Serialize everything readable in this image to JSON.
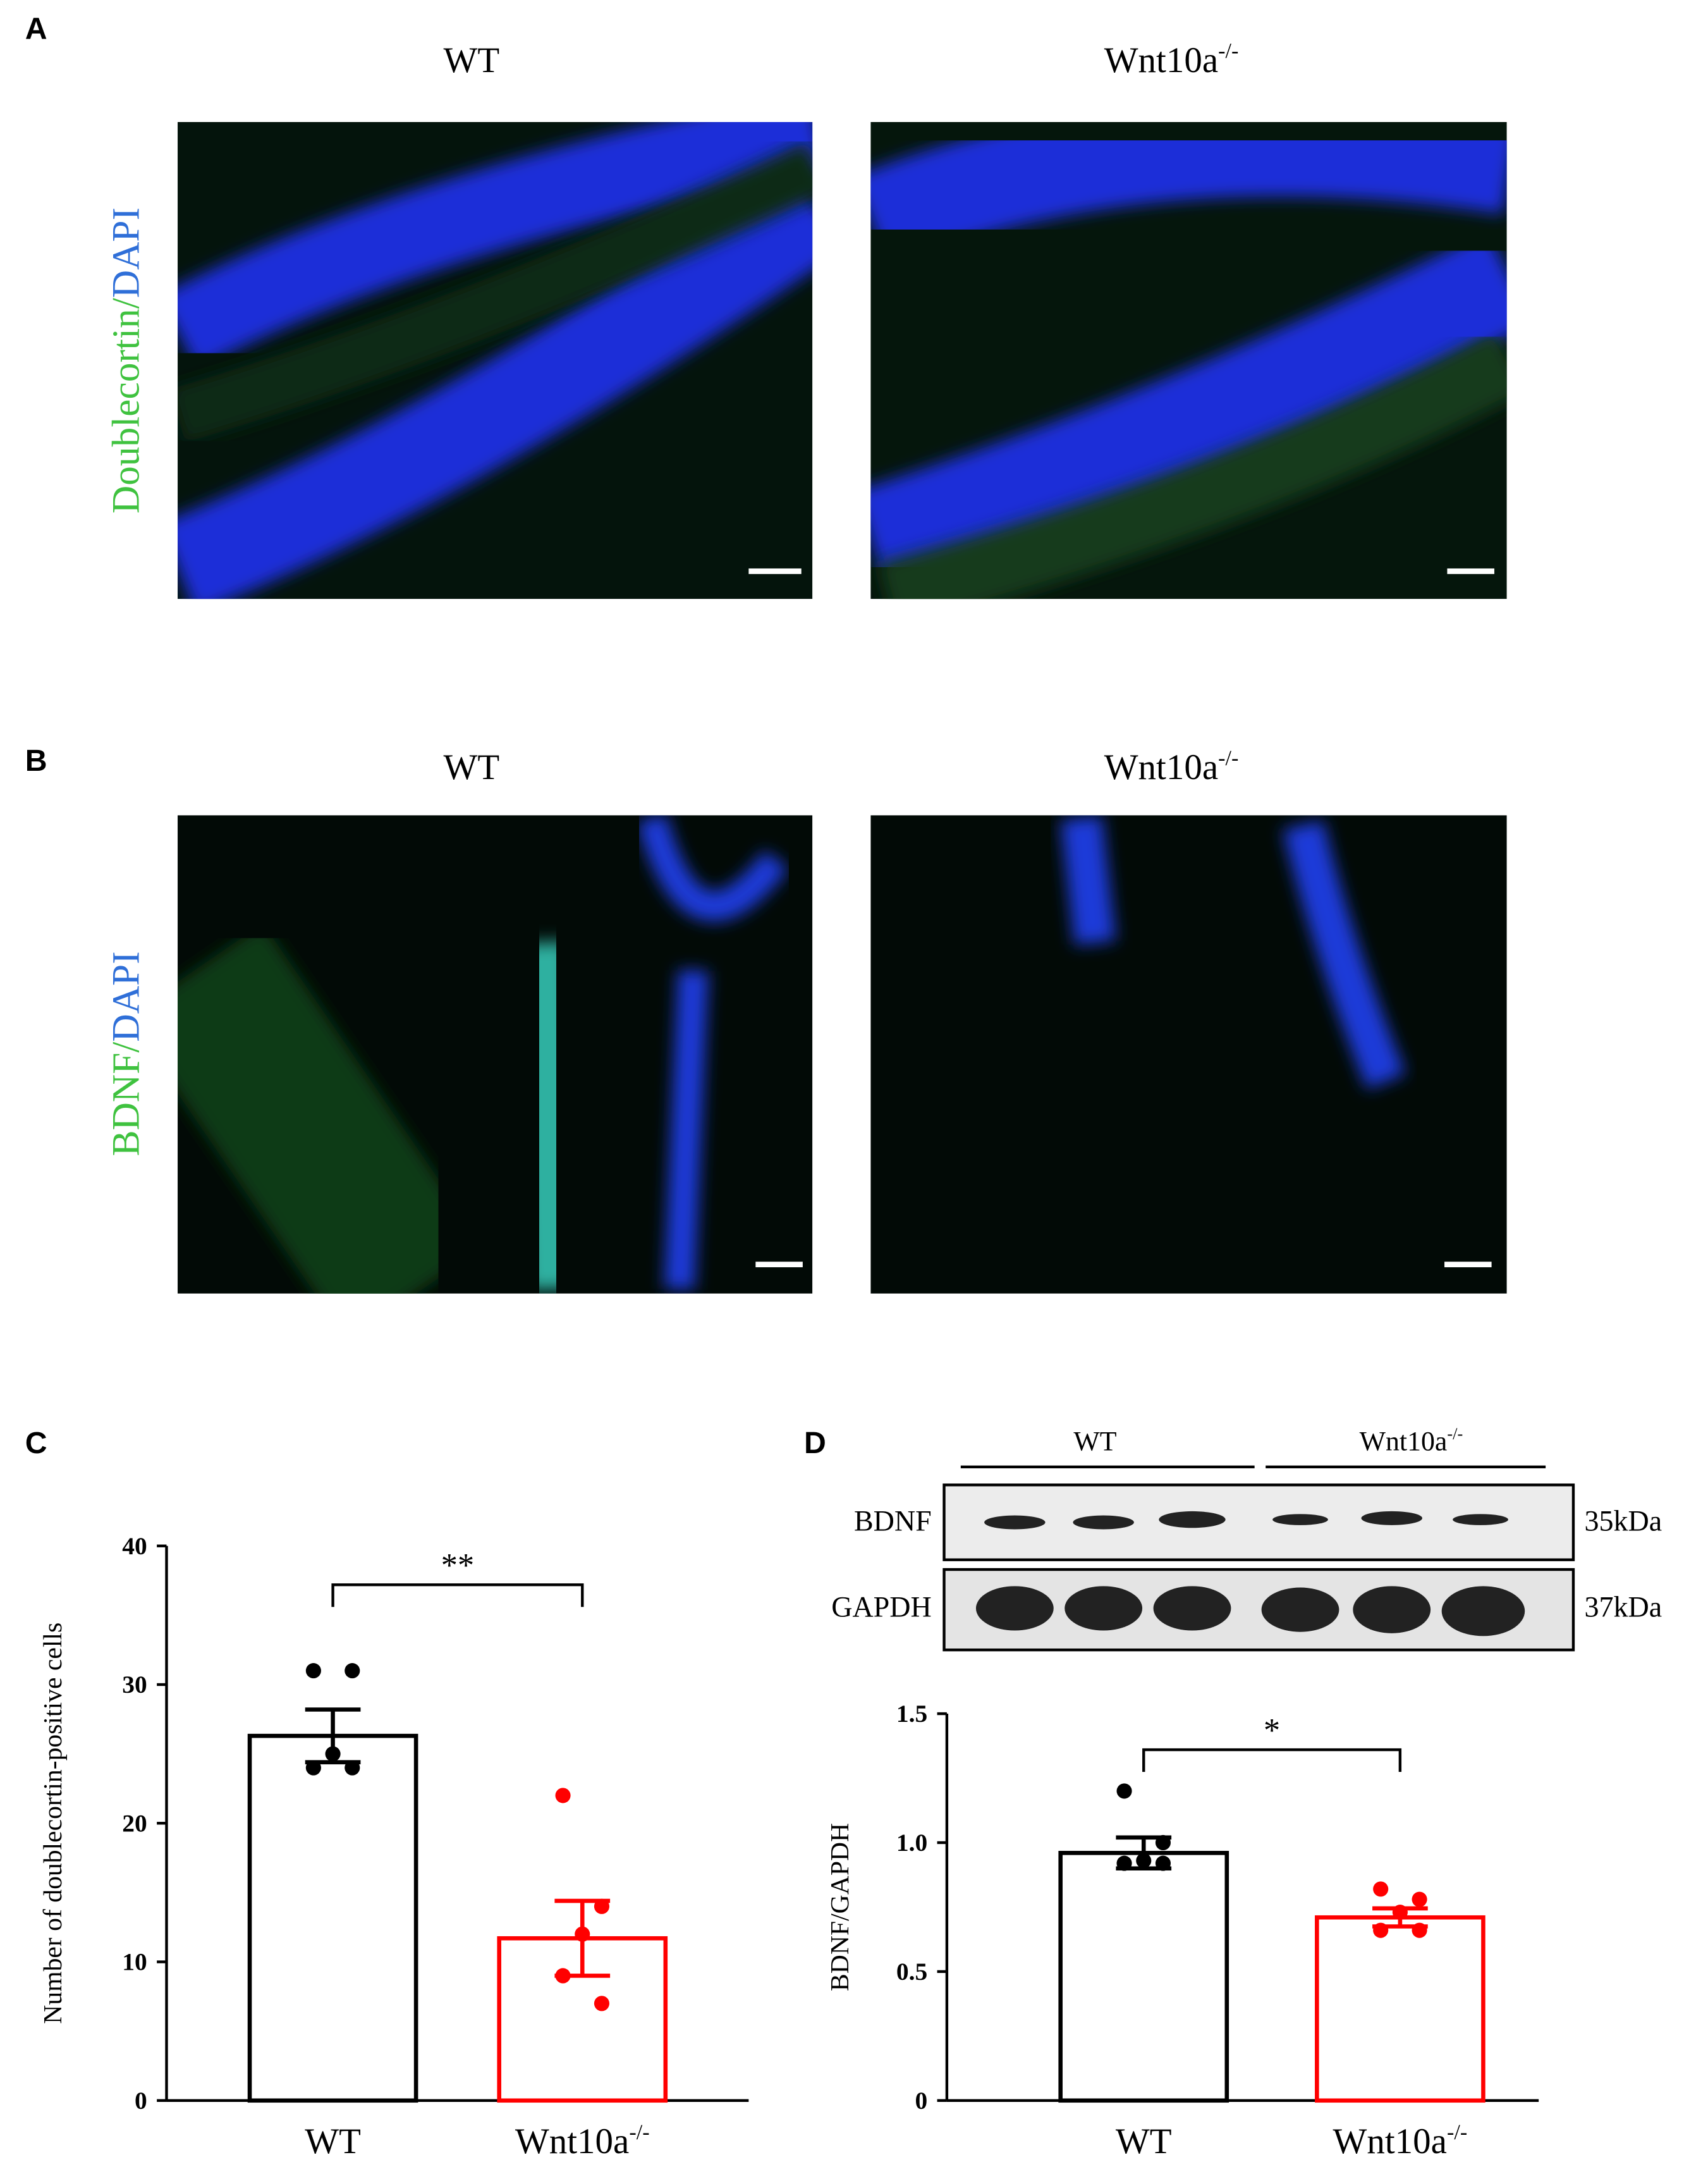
{
  "panel_labels": [
    "A",
    "B",
    "C",
    "D"
  ],
  "panel_a": {
    "columns": [
      {
        "text": "WT"
      },
      {
        "text": "Wnt10a",
        "sup": "-/-"
      }
    ],
    "stain": "Doublecortin",
    "separator": "/",
    "counterstain": "DAPI"
  },
  "panel_b": {
    "columns": [
      {
        "text": "WT"
      },
      {
        "text": "Wnt10a",
        "sup": "-/-"
      }
    ],
    "stain": "BDNF",
    "separator": "/",
    "counterstain": "DAPI"
  },
  "blot": {
    "groups": [
      {
        "text": "WT"
      },
      {
        "text": "Wnt10a",
        "sup": "-/-"
      }
    ],
    "rows": [
      {
        "name": "BDNF",
        "size": "35kDa"
      },
      {
        "name": "GAPDH",
        "size": "37kDa"
      }
    ]
  },
  "chart_data": [
    {
      "type": "bar",
      "ylabel": "Number of doublecortin-positive cells",
      "categories": [
        "WT",
        "Wnt10a"
      ],
      "category_superscripts": [
        null,
        "-/-"
      ],
      "values": [
        26.3,
        11.7
      ],
      "errors": [
        1.9,
        2.7
      ],
      "points": [
        [
          31,
          31,
          25,
          24,
          24
        ],
        [
          22,
          14,
          12,
          9,
          7
        ]
      ],
      "colors": [
        "#000000",
        "#ff0000"
      ],
      "ylim": [
        0,
        40
      ],
      "yticks": [
        0,
        10,
        20,
        30,
        40
      ],
      "annotation": "**"
    },
    {
      "type": "bar",
      "ylabel": "BDNF/GAPDH",
      "categories": [
        "WT",
        "Wnt10a"
      ],
      "category_superscripts": [
        null,
        "-/-"
      ],
      "values": [
        0.96,
        0.71
      ],
      "errors": [
        0.06,
        0.035
      ],
      "points": [
        [
          1.2,
          1.0,
          0.93,
          0.92,
          0.92
        ],
        [
          0.82,
          0.78,
          0.73,
          0.66,
          0.66
        ]
      ],
      "colors": [
        "#000000",
        "#ff0000"
      ],
      "ylim": [
        0,
        1.5
      ],
      "yticks": [
        0,
        0.5,
        {
          "value": 1,
          "label": "1.0"
        },
        1.5
      ],
      "annotation": "*"
    }
  ]
}
